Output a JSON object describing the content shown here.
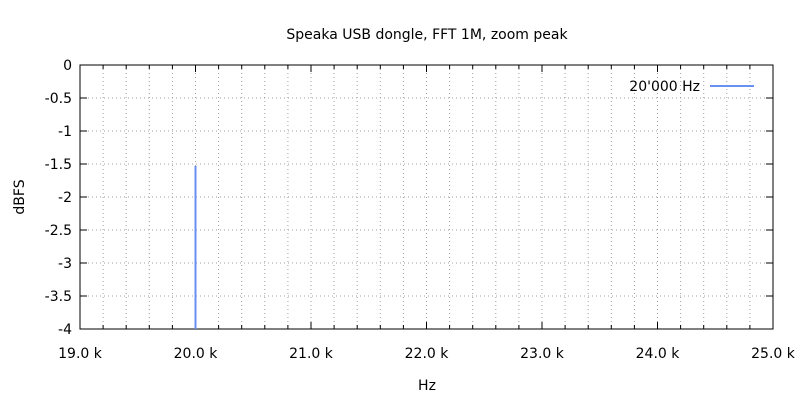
{
  "chart_data": {
    "type": "line",
    "title": "Speaka USB dongle, FFT 1M, zoom peak",
    "xlabel": "Hz",
    "ylabel": "dBFS",
    "xlim": [
      19000,
      25000
    ],
    "ylim": [
      -4,
      0
    ],
    "x_ticks": [
      19000,
      20000,
      21000,
      22000,
      23000,
      24000,
      25000
    ],
    "x_tick_labels": [
      "19.0 k",
      "20.0 k",
      "21.0 k",
      "22.0 k",
      "23.0 k",
      "24.0 k",
      "25.0 k"
    ],
    "y_ticks": [
      0,
      -0.5,
      -1,
      -1.5,
      -2,
      -2.5,
      -3,
      -3.5,
      -4
    ],
    "y_tick_labels": [
      "0",
      "-0.5",
      "-1",
      "-1.5",
      "-2",
      "-2.5",
      "-3",
      "-3.5",
      "-4"
    ],
    "x_minor_step": 200,
    "grid": true,
    "legend_position": "top-right",
    "series": [
      {
        "name": "20'000 Hz",
        "color": "#6b8ff0",
        "x": [
          20000,
          20000
        ],
        "y": [
          -4,
          -1.53
        ]
      }
    ]
  }
}
